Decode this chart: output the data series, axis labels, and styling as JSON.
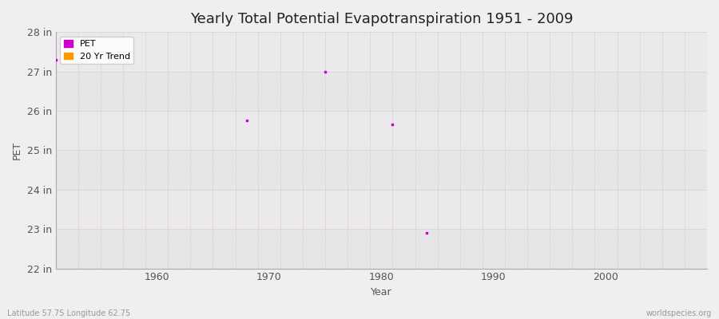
{
  "title": "Yearly Total Potential Evapotranspiration 1951 - 2009",
  "xlabel": "Year",
  "ylabel": "PET",
  "fig_bg_color": "#f0eef0",
  "plot_bg_color": "#edeaed",
  "band_colors": [
    "#e8e5e8",
    "#ece9ec"
  ],
  "grid_color_h": "#d8d4d8",
  "grid_color_v": "#d0ccd0",
  "xlim": [
    1951,
    2009
  ],
  "ylim": [
    22,
    28
  ],
  "yticks": [
    22,
    23,
    24,
    25,
    26,
    27,
    28
  ],
  "ytick_labels": [
    "22 in",
    "23 in",
    "24 in",
    "25 in",
    "26 in",
    "27 in",
    "28 in"
  ],
  "xticks": [
    1960,
    1970,
    1980,
    1990,
    2000
  ],
  "pet_x": [
    1951,
    1968,
    1975,
    1981,
    1984
  ],
  "pet_y": [
    27.3,
    25.75,
    27.0,
    25.65,
    22.9
  ],
  "pet_color": "#cc00cc",
  "trend_color": "#ff9900",
  "title_fontsize": 13,
  "axis_label_fontsize": 9,
  "tick_fontsize": 9,
  "footer_left": "Latitude 57.75 Longitude 62.75",
  "footer_right": "worldspecies.org",
  "marker_size": 3,
  "legend_fontsize": 8
}
